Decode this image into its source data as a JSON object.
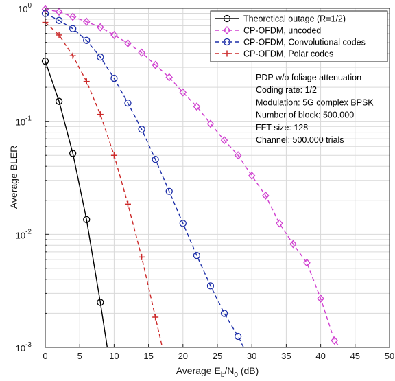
{
  "chart_data": {
    "type": "line",
    "title": "",
    "xlabel_main": "Average E",
    "xlabel_sub1": "b",
    "xlabel_mid": "/N",
    "xlabel_sub2": "0",
    "xlabel_unit": " (dB)",
    "ylabel": "Average BLER",
    "xlim": [
      0,
      50
    ],
    "ylim": [
      0.001,
      1
    ],
    "yscale": "log",
    "grid": true,
    "legend_position": "top-right",
    "x_ticks": [
      "0",
      "5",
      "10",
      "15",
      "20",
      "25",
      "30",
      "35",
      "40",
      "45",
      "50"
    ],
    "y_ticks": [
      {
        "value": 1,
        "base": "10",
        "exp": "0"
      },
      {
        "value": 0.1,
        "base": "10",
        "exp": "-1"
      },
      {
        "value": 0.01,
        "base": "10",
        "exp": "-2"
      },
      {
        "value": 0.001,
        "base": "10",
        "exp": "-3"
      }
    ],
    "series": [
      {
        "name": "Theoretical outage (R=1/2)",
        "color": "#000000",
        "dash": "",
        "marker": "circle",
        "x": [
          0,
          2,
          4,
          6,
          8,
          9
        ],
        "y": [
          0.34,
          0.15,
          0.052,
          0.0135,
          0.0025,
          0.001
        ]
      },
      {
        "name": "CP-OFDM, uncoded",
        "color": "#d040d0",
        "dash": "6,4",
        "marker": "diamond",
        "x": [
          0,
          2,
          4,
          6,
          8,
          10,
          12,
          14,
          16,
          18,
          20,
          22,
          24,
          26,
          28,
          30,
          32,
          34,
          36,
          38,
          40,
          42,
          42.8
        ],
        "y": [
          0.98,
          0.93,
          0.84,
          0.76,
          0.68,
          0.58,
          0.49,
          0.405,
          0.315,
          0.245,
          0.18,
          0.135,
          0.095,
          0.068,
          0.05,
          0.033,
          0.022,
          0.0125,
          0.0082,
          0.0056,
          0.0027,
          0.00115,
          0.001
        ]
      },
      {
        "name": "CP-OFDM, Convolutional codes",
        "color": "#1c2ea8",
        "dash": "6,4",
        "marker": "circle",
        "x": [
          0,
          2,
          4,
          6,
          8,
          10,
          12,
          14,
          16,
          18,
          20,
          22,
          24,
          26,
          28,
          28.8
        ],
        "y": [
          0.9,
          0.78,
          0.66,
          0.52,
          0.37,
          0.24,
          0.145,
          0.085,
          0.046,
          0.024,
          0.0125,
          0.0065,
          0.0035,
          0.002,
          0.00125,
          0.001
        ]
      },
      {
        "name": "CP-OFDM, Polar codes",
        "color": "#cc2a2a",
        "dash": "6,4",
        "marker": "plus",
        "x": [
          0,
          2,
          4,
          6,
          8,
          10,
          12,
          14,
          16,
          17
        ],
        "y": [
          0.75,
          0.58,
          0.38,
          0.225,
          0.115,
          0.05,
          0.0185,
          0.0063,
          0.00185,
          0.001
        ]
      }
    ],
    "annotations": [
      "PDP w/o foliage attenuation",
      "Coding rate: 1/2",
      "Modulation: 5G complex BPSK",
      "Number of block: 500.000",
      "FFT size: 128",
      "Channel: 500.000 trials"
    ]
  }
}
